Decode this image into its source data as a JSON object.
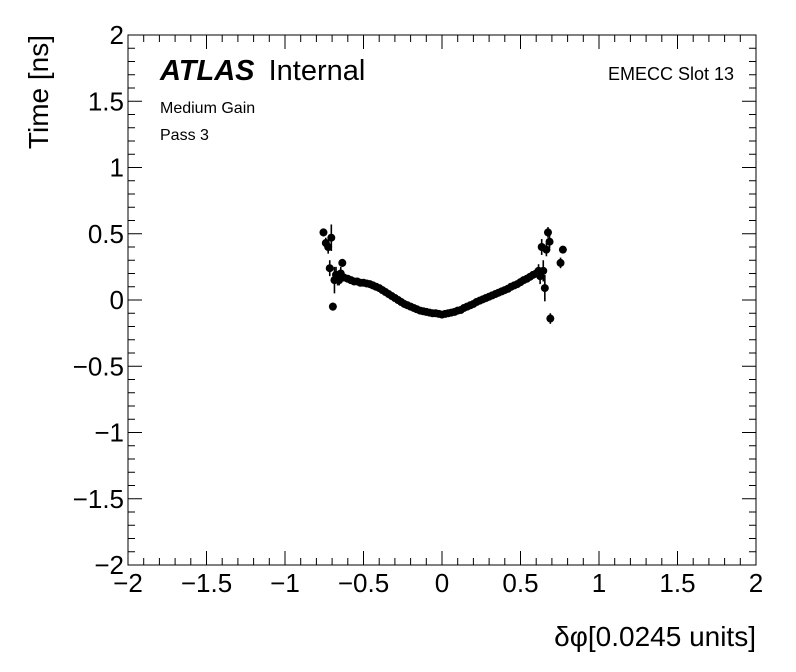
{
  "chart_data": {
    "type": "scatter",
    "xlabel": "δφ[0.0245 units]",
    "ylabel": "Time [ns]",
    "xlim": [
      -2,
      2
    ],
    "ylim": [
      -2,
      2
    ],
    "x_ticks": [
      {
        "v": -2,
        "label": "−2"
      },
      {
        "v": -1.5,
        "label": "−1.5"
      },
      {
        "v": -1,
        "label": "−1"
      },
      {
        "v": -0.5,
        "label": "−0.5"
      },
      {
        "v": 0,
        "label": "0"
      },
      {
        "v": 0.5,
        "label": "0.5"
      },
      {
        "v": 1,
        "label": "1"
      },
      {
        "v": 1.5,
        "label": "1.5"
      },
      {
        "v": 2,
        "label": "2"
      }
    ],
    "y_ticks": [
      {
        "v": -2,
        "label": "−2"
      },
      {
        "v": -1.5,
        "label": "−1.5"
      },
      {
        "v": -1,
        "label": "−1"
      },
      {
        "v": -0.5,
        "label": "−0.5"
      },
      {
        "v": 0,
        "label": "0"
      },
      {
        "v": 0.5,
        "label": "0.5"
      },
      {
        "v": 1,
        "label": "1"
      },
      {
        "v": 1.5,
        "label": "1.5"
      },
      {
        "v": 2,
        "label": "2"
      }
    ],
    "grid": false,
    "annotations": {
      "atlas_bold": "ATLAS",
      "atlas_rest": "Internal",
      "line1": "Medium Gain",
      "line2": "Pass 3",
      "right": "EMECC Slot 13"
    },
    "marker_color": "#000000",
    "points": [
      {
        "x": -0.755,
        "y": 0.51,
        "err": 0.03
      },
      {
        "x": -0.74,
        "y": 0.43,
        "err": 0.04
      },
      {
        "x": -0.725,
        "y": 0.4,
        "err": 0.05
      },
      {
        "x": -0.715,
        "y": 0.24,
        "err": 0.06
      },
      {
        "x": -0.705,
        "y": 0.47,
        "err": 0.1
      },
      {
        "x": -0.695,
        "y": -0.05,
        "err": 0.03
      },
      {
        "x": -0.685,
        "y": 0.15,
        "err": 0.1
      },
      {
        "x": -0.675,
        "y": 0.19,
        "err": 0.06
      },
      {
        "x": -0.665,
        "y": 0.16,
        "err": 0.05
      },
      {
        "x": -0.655,
        "y": 0.15,
        "err": 0.04
      },
      {
        "x": -0.645,
        "y": 0.2,
        "err": 0.05
      },
      {
        "x": -0.635,
        "y": 0.28,
        "err": 0.03
      },
      {
        "x": -0.625,
        "y": 0.17,
        "err": 0.03
      },
      {
        "x": -0.6,
        "y": 0.16,
        "err": 0.02
      },
      {
        "x": -0.58,
        "y": 0.15,
        "err": 0.015
      },
      {
        "x": -0.56,
        "y": 0.14,
        "err": 0.015
      },
      {
        "x": -0.54,
        "y": 0.14,
        "err": 0.01
      },
      {
        "x": -0.52,
        "y": 0.13,
        "err": 0.01
      },
      {
        "x": -0.5,
        "y": 0.13,
        "err": 0.01
      },
      {
        "x": -0.48,
        "y": 0.125,
        "err": 0.01
      },
      {
        "x": -0.46,
        "y": 0.12,
        "err": 0.01
      },
      {
        "x": -0.44,
        "y": 0.11,
        "err": 0.01
      },
      {
        "x": -0.42,
        "y": 0.1,
        "err": 0.01
      },
      {
        "x": -0.4,
        "y": 0.09,
        "err": 0.01
      },
      {
        "x": -0.38,
        "y": 0.075,
        "err": 0.01
      },
      {
        "x": -0.36,
        "y": 0.06,
        "err": 0.01
      },
      {
        "x": -0.34,
        "y": 0.045,
        "err": 0.01
      },
      {
        "x": -0.32,
        "y": 0.03,
        "err": 0.01
      },
      {
        "x": -0.3,
        "y": 0.015,
        "err": 0.01
      },
      {
        "x": -0.28,
        "y": 0.0,
        "err": 0.01
      },
      {
        "x": -0.26,
        "y": -0.015,
        "err": 0.01
      },
      {
        "x": -0.24,
        "y": -0.03,
        "err": 0.01
      },
      {
        "x": -0.22,
        "y": -0.04,
        "err": 0.01
      },
      {
        "x": -0.2,
        "y": -0.05,
        "err": 0.01
      },
      {
        "x": -0.18,
        "y": -0.06,
        "err": 0.01
      },
      {
        "x": -0.16,
        "y": -0.07,
        "err": 0.01
      },
      {
        "x": -0.14,
        "y": -0.08,
        "err": 0.01
      },
      {
        "x": -0.12,
        "y": -0.085,
        "err": 0.01
      },
      {
        "x": -0.1,
        "y": -0.09,
        "err": 0.01
      },
      {
        "x": -0.08,
        "y": -0.095,
        "err": 0.01
      },
      {
        "x": -0.06,
        "y": -0.1,
        "err": 0.01
      },
      {
        "x": -0.04,
        "y": -0.1,
        "err": 0.01
      },
      {
        "x": -0.02,
        "y": -0.105,
        "err": 0.01
      },
      {
        "x": 0.0,
        "y": -0.11,
        "err": 0.01
      },
      {
        "x": 0.02,
        "y": -0.105,
        "err": 0.01
      },
      {
        "x": 0.04,
        "y": -0.1,
        "err": 0.01
      },
      {
        "x": 0.06,
        "y": -0.095,
        "err": 0.01
      },
      {
        "x": 0.08,
        "y": -0.09,
        "err": 0.01
      },
      {
        "x": 0.1,
        "y": -0.08,
        "err": 0.01
      },
      {
        "x": 0.12,
        "y": -0.075,
        "err": 0.01
      },
      {
        "x": 0.14,
        "y": -0.06,
        "err": 0.01
      },
      {
        "x": 0.16,
        "y": -0.05,
        "err": 0.01
      },
      {
        "x": 0.18,
        "y": -0.04,
        "err": 0.01
      },
      {
        "x": 0.2,
        "y": -0.03,
        "err": 0.01
      },
      {
        "x": 0.22,
        "y": -0.015,
        "err": 0.01
      },
      {
        "x": 0.24,
        "y": -0.005,
        "err": 0.01
      },
      {
        "x": 0.26,
        "y": 0.005,
        "err": 0.01
      },
      {
        "x": 0.28,
        "y": 0.015,
        "err": 0.01
      },
      {
        "x": 0.3,
        "y": 0.025,
        "err": 0.01
      },
      {
        "x": 0.32,
        "y": 0.035,
        "err": 0.01
      },
      {
        "x": 0.34,
        "y": 0.045,
        "err": 0.01
      },
      {
        "x": 0.36,
        "y": 0.055,
        "err": 0.01
      },
      {
        "x": 0.38,
        "y": 0.065,
        "err": 0.01
      },
      {
        "x": 0.4,
        "y": 0.075,
        "err": 0.01
      },
      {
        "x": 0.42,
        "y": 0.085,
        "err": 0.01
      },
      {
        "x": 0.44,
        "y": 0.1,
        "err": 0.01
      },
      {
        "x": 0.46,
        "y": 0.11,
        "err": 0.01
      },
      {
        "x": 0.48,
        "y": 0.12,
        "err": 0.01
      },
      {
        "x": 0.5,
        "y": 0.135,
        "err": 0.015
      },
      {
        "x": 0.52,
        "y": 0.15,
        "err": 0.015
      },
      {
        "x": 0.54,
        "y": 0.16,
        "err": 0.015
      },
      {
        "x": 0.56,
        "y": 0.175,
        "err": 0.02
      },
      {
        "x": 0.58,
        "y": 0.19,
        "err": 0.02
      },
      {
        "x": 0.6,
        "y": 0.2,
        "err": 0.03
      },
      {
        "x": 0.615,
        "y": 0.22,
        "err": 0.05
      },
      {
        "x": 0.625,
        "y": 0.18,
        "err": 0.06
      },
      {
        "x": 0.635,
        "y": 0.4,
        "err": 0.06
      },
      {
        "x": 0.645,
        "y": 0.22,
        "err": 0.08
      },
      {
        "x": 0.655,
        "y": 0.09,
        "err": 0.1
      },
      {
        "x": 0.665,
        "y": 0.38,
        "err": 0.05
      },
      {
        "x": 0.675,
        "y": 0.51,
        "err": 0.04
      },
      {
        "x": 0.685,
        "y": 0.44,
        "err": 0.05
      },
      {
        "x": 0.69,
        "y": -0.14,
        "err": 0.04
      },
      {
        "x": 0.755,
        "y": 0.28,
        "err": 0.04
      },
      {
        "x": 0.77,
        "y": 0.38,
        "err": 0.02
      }
    ]
  }
}
